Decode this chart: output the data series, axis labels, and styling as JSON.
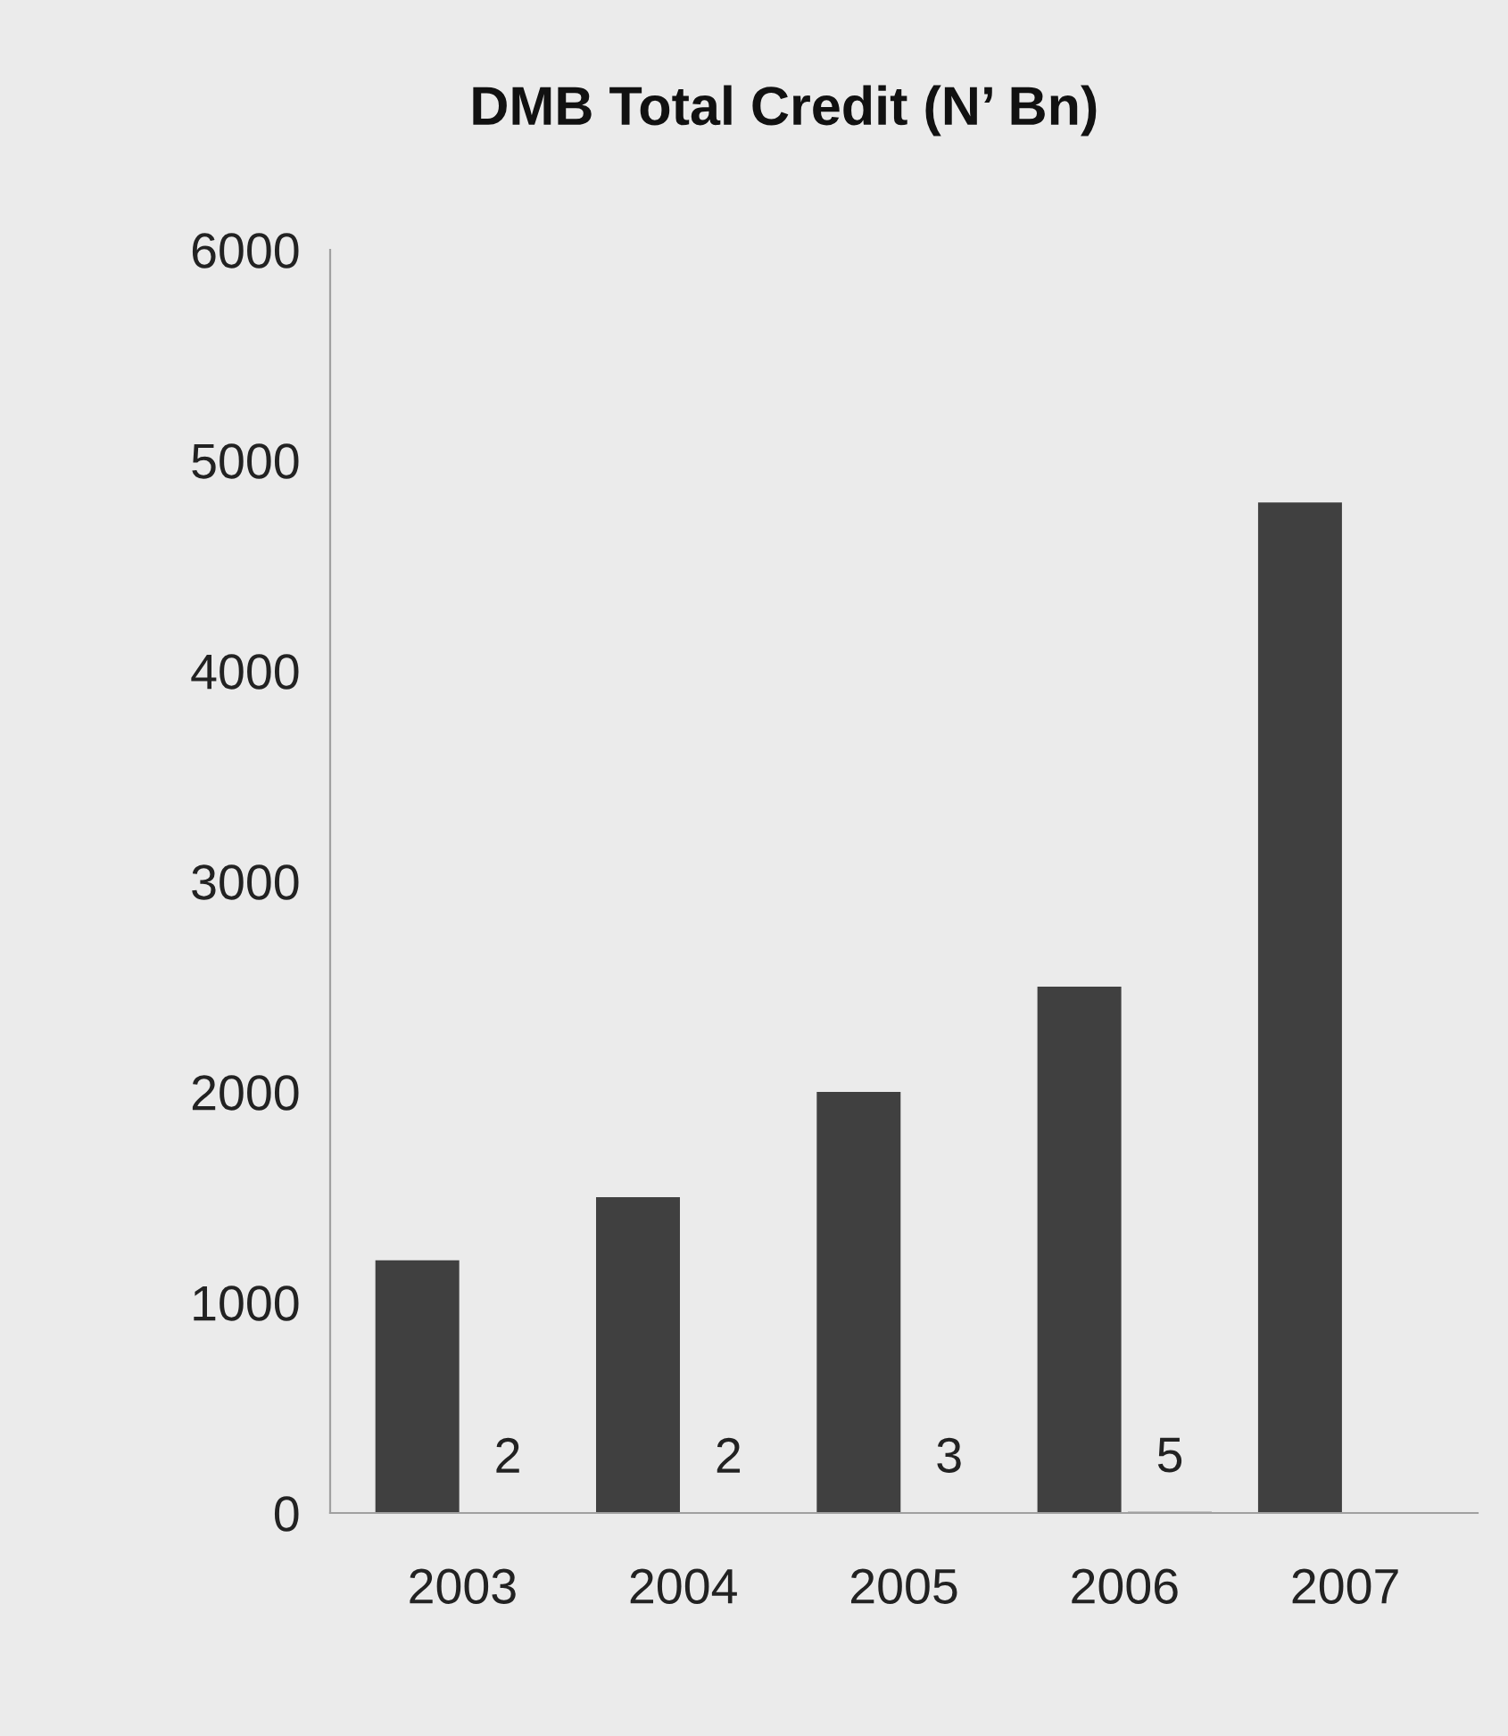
{
  "chart_data": {
    "type": "bar",
    "title": "DMB Total Credit (N’ Bn)",
    "categories": [
      "2003",
      "2004",
      "2005",
      "2006",
      "2007"
    ],
    "series": [
      {
        "color": "#404040",
        "values": [
          1200,
          1500,
          2000,
          2500,
          4800
        ]
      },
      {
        "color": "#404040",
        "values": [
          2,
          2,
          3,
          5,
          null
        ],
        "value_labels": [
          "2",
          "2",
          "3",
          "5",
          null
        ]
      }
    ],
    "ylim": [
      0,
      6000
    ],
    "yticks": [
      0,
      1000,
      2000,
      3000,
      4000,
      5000,
      6000
    ],
    "grid": false,
    "legend": false
  }
}
